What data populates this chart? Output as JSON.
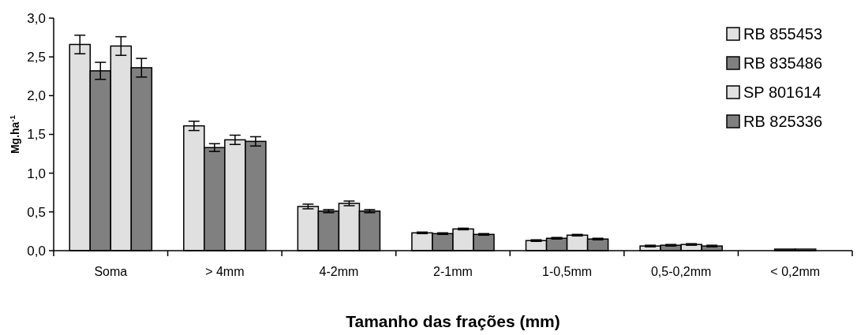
{
  "chart_data": {
    "type": "bar",
    "xlabel": "Tamanho das frações (mm)",
    "ylabel": "Mg.ha$^{-1}$",
    "categories": [
      "Soma",
      "> 4mm",
      "4-2mm",
      "2-1mm",
      "1-0,5mm",
      "0,5-0,2mm",
      "< 0,2mm"
    ],
    "series": [
      {
        "name": "RB 855453",
        "color": "#e0e0e0",
        "values": [
          2.66,
          1.61,
          0.57,
          0.23,
          0.13,
          0.06,
          null
        ],
        "errors": [
          0.12,
          0.06,
          0.03,
          0.01,
          0.01,
          0.01,
          null
        ]
      },
      {
        "name": "RB 835486",
        "color": "#808080",
        "values": [
          2.32,
          1.33,
          0.51,
          0.22,
          0.16,
          0.07,
          0.02
        ],
        "errors": [
          0.11,
          0.05,
          0.02,
          0.01,
          0.01,
          0.01,
          null
        ]
      },
      {
        "name": "SP 801614",
        "color": "#e0e0e0",
        "values": [
          2.64,
          1.43,
          0.61,
          0.28,
          0.2,
          0.08,
          0.02
        ],
        "errors": [
          0.12,
          0.06,
          0.03,
          0.01,
          0.01,
          0.01,
          null
        ]
      },
      {
        "name": "RB 825336",
        "color": "#808080",
        "values": [
          2.36,
          1.41,
          0.51,
          0.21,
          0.15,
          0.06,
          null
        ],
        "errors": [
          0.12,
          0.06,
          0.02,
          0.01,
          0.01,
          0.01,
          null
        ]
      }
    ],
    "ylim": [
      0,
      3
    ],
    "yticks": [
      {
        "value": 0,
        "label": "0,0"
      },
      {
        "value": 0.5,
        "label": "0,5"
      },
      {
        "value": 1,
        "label": "1,0"
      },
      {
        "value": 1.5,
        "label": "1,5"
      },
      {
        "value": 2,
        "label": "2,0"
      },
      {
        "value": 2.5,
        "label": "2,5"
      },
      {
        "value": 3,
        "label": "3,0"
      }
    ],
    "legend": "top right",
    "grid": false
  }
}
